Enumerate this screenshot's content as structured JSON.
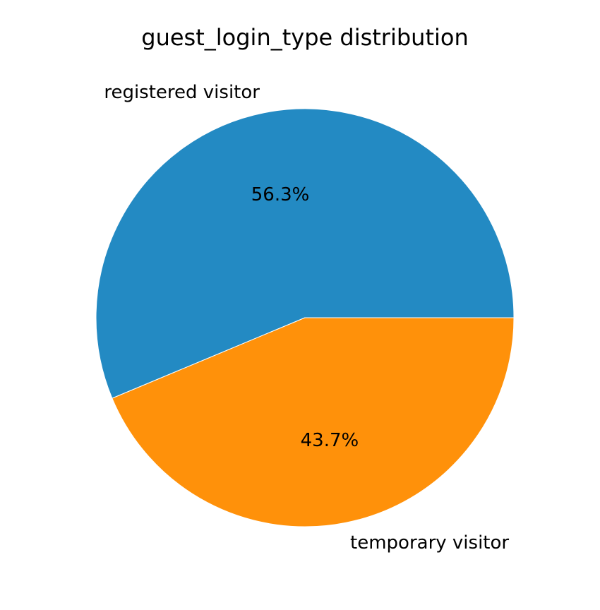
{
  "chart_data": {
    "type": "pie",
    "title": "guest_login_type distribution",
    "categories": [
      "registered visitor",
      "temporary visitor"
    ],
    "values": [
      56.3,
      43.7
    ],
    "value_labels": [
      "56.3%",
      "43.7%"
    ],
    "colors": [
      "#238ac3",
      "#ff910a"
    ],
    "start_angle_deg": 0,
    "direction": "counterclockwise",
    "legend": "none"
  }
}
